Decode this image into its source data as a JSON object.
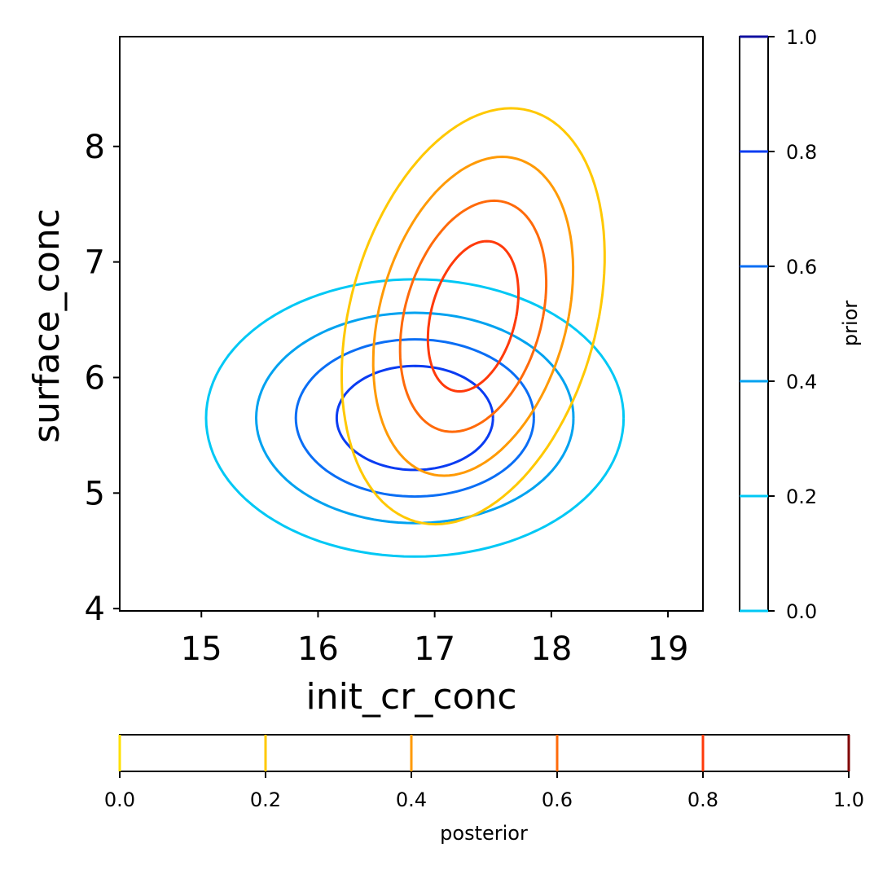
{
  "chart_data": {
    "type": "contour",
    "xlabel": "init_cr_conc",
    "ylabel": "surface_conc",
    "xlim": [
      14.3,
      19.3
    ],
    "ylim": [
      3.98,
      8.95
    ],
    "xticks": [
      15,
      16,
      17,
      18,
      19
    ],
    "xtick_labels": [
      "15",
      "16",
      "17",
      "18",
      "19"
    ],
    "yticks": [
      4,
      5,
      6,
      7,
      8
    ],
    "ytick_labels": [
      "4",
      "5",
      "6",
      "7",
      "8"
    ],
    "grid": false,
    "series": [
      {
        "name": "prior",
        "center": [
          16.83,
          5.65
        ],
        "levels": [
          {
            "level": 0.2,
            "color": "#00c8f5",
            "half_width": 1.79,
            "half_height": 1.2,
            "tilt": 0
          },
          {
            "level": 0.4,
            "color": "#00a2f0",
            "half_width": 1.36,
            "half_height": 0.91,
            "tilt": 0
          },
          {
            "level": 0.6,
            "color": "#0a6ef5",
            "half_width": 1.02,
            "half_height": 0.68,
            "tilt": 0
          },
          {
            "level": 0.8,
            "color": "#0a3cf2",
            "half_width": 0.67,
            "half_height": 0.45,
            "tilt": 0
          }
        ]
      },
      {
        "name": "posterior",
        "center": [
          17.33,
          6.53
        ],
        "levels": [
          {
            "level": 0.2,
            "color": "#ffc800",
            "half_width": 1.08,
            "half_height": 1.8,
            "tilt": 0.18
          },
          {
            "level": 0.4,
            "color": "#ff9a05",
            "half_width": 0.82,
            "half_height": 1.38,
            "tilt": 0.18
          },
          {
            "level": 0.6,
            "color": "#ff6a0a",
            "half_width": 0.6,
            "half_height": 1.0,
            "tilt": 0.18
          },
          {
            "level": 0.8,
            "color": "#ff3a0a",
            "half_width": 0.37,
            "half_height": 0.65,
            "tilt": 0.18
          }
        ]
      }
    ],
    "colorbars": [
      {
        "label": "prior",
        "orientation": "vertical",
        "range": [
          0,
          1
        ],
        "ticks": [
          "0.0",
          "0.2",
          "0.4",
          "0.6",
          "0.8",
          "1.0"
        ],
        "lines": [
          {
            "value": 0.0,
            "color": "#00c8f5"
          },
          {
            "value": 0.2,
            "color": "#00c8f5"
          },
          {
            "value": 0.4,
            "color": "#00a2f0"
          },
          {
            "value": 0.6,
            "color": "#0a6ef5"
          },
          {
            "value": 0.8,
            "color": "#0a3cf2"
          },
          {
            "value": 1.0,
            "color": "#1010a0"
          }
        ]
      },
      {
        "label": "posterior",
        "orientation": "horizontal",
        "range": [
          0,
          1
        ],
        "ticks": [
          "0.0",
          "0.2",
          "0.4",
          "0.6",
          "0.8",
          "1.0"
        ],
        "lines": [
          {
            "value": 0.0,
            "color": "#ffe000"
          },
          {
            "value": 0.2,
            "color": "#ffc800"
          },
          {
            "value": 0.4,
            "color": "#ff9a05"
          },
          {
            "value": 0.6,
            "color": "#ff6a0a"
          },
          {
            "value": 0.8,
            "color": "#ff3a0a"
          },
          {
            "value": 1.0,
            "color": "#800000"
          }
        ]
      }
    ]
  }
}
